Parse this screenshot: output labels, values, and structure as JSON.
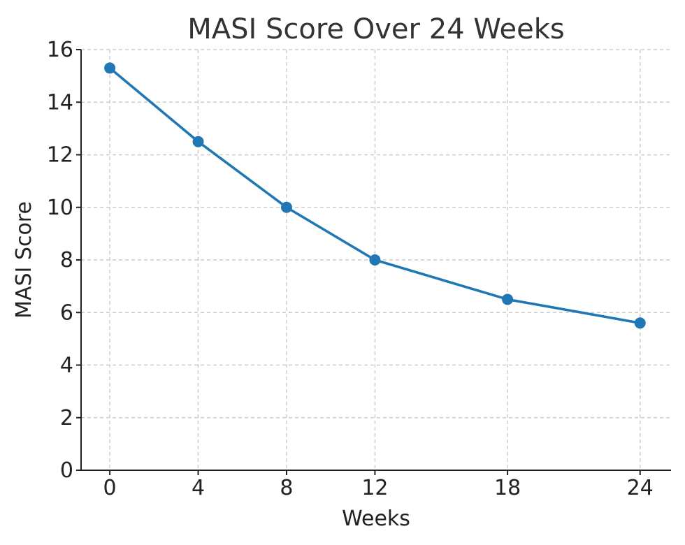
{
  "chart_data": {
    "type": "line",
    "title": "MASI Score Over 24 Weeks",
    "xlabel": "Weeks",
    "ylabel": "MASI Score",
    "x": [
      0,
      4,
      8,
      12,
      18,
      24
    ],
    "x_tick_labels": [
      "0",
      "4",
      "8",
      "12",
      "18",
      "24"
    ],
    "y_ticks": [
      0,
      2,
      4,
      6,
      8,
      10,
      12,
      14,
      16
    ],
    "y_tick_labels": [
      "0",
      "2",
      "4",
      "6",
      "8",
      "10",
      "12",
      "14",
      "16"
    ],
    "ylim": [
      0,
      16
    ],
    "grid": true,
    "series": [
      {
        "values": [
          15.3,
          12.5,
          10.0,
          8.0,
          6.5,
          5.6
        ],
        "color": "#1f77b4",
        "marker": "circle"
      }
    ]
  }
}
